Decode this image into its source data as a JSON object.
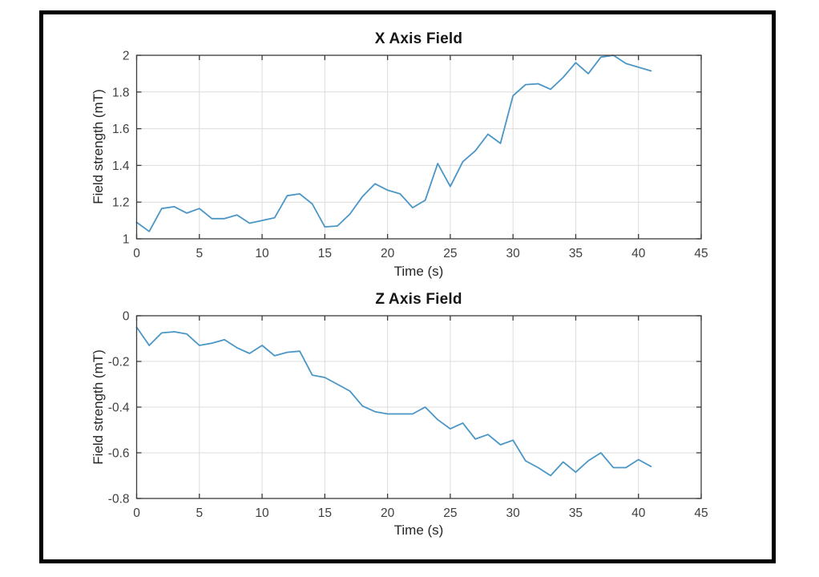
{
  "figure": {
    "background": "#ffffff",
    "frame_color": "#000000"
  },
  "chart_data": [
    {
      "type": "line",
      "title": "X Axis Field",
      "xlabel": "Time (s)",
      "ylabel": "Field strength (mT)",
      "xlim": [
        0,
        45
      ],
      "ylim": [
        1,
        2
      ],
      "xticks": [
        0,
        5,
        10,
        15,
        20,
        25,
        30,
        35,
        40,
        45
      ],
      "xtick_labels": [
        "0",
        "5",
        "10",
        "15",
        "20",
        "25",
        "30",
        "35",
        "40",
        "45"
      ],
      "yticks": [
        1,
        1.2,
        1.4,
        1.6,
        1.8,
        2
      ],
      "ytick_labels": [
        "1",
        "1.2",
        "1.4",
        "1.6",
        "1.8",
        "2"
      ],
      "grid": true,
      "legend": null,
      "line_color": "#4a96c6",
      "x": [
        0,
        1,
        2,
        3,
        4,
        5,
        6,
        7,
        8,
        9,
        10,
        11,
        12,
        13,
        14,
        15,
        16,
        17,
        18,
        19,
        20,
        21,
        22,
        23,
        24,
        25,
        26,
        27,
        28,
        29,
        30,
        31,
        32,
        33,
        34,
        35,
        36,
        37,
        38,
        39,
        40,
        41
      ],
      "y": [
        1.09,
        1.04,
        1.165,
        1.175,
        1.14,
        1.165,
        1.11,
        1.11,
        1.13,
        1.085,
        1.1,
        1.115,
        1.235,
        1.245,
        1.19,
        1.065,
        1.07,
        1.135,
        1.23,
        1.3,
        1.265,
        1.245,
        1.17,
        1.21,
        1.41,
        1.285,
        1.42,
        1.48,
        1.57,
        1.52,
        1.78,
        1.84,
        1.845,
        1.815,
        1.88,
        1.96,
        1.9,
        1.99,
        2.0,
        1.955,
        1.935,
        1.915
      ]
    },
    {
      "type": "line",
      "title": "Z Axis Field",
      "xlabel": "Time (s)",
      "ylabel": "Field strength (mT)",
      "xlim": [
        0,
        45
      ],
      "ylim": [
        -0.8,
        0
      ],
      "xticks": [
        0,
        5,
        10,
        15,
        20,
        25,
        30,
        35,
        40,
        45
      ],
      "xtick_labels": [
        "0",
        "5",
        "10",
        "15",
        "20",
        "25",
        "30",
        "35",
        "40",
        "45"
      ],
      "yticks": [
        0,
        -0.2,
        -0.4,
        -0.6,
        -0.8
      ],
      "ytick_labels": [
        "0",
        "-0.2",
        "-0.4",
        "-0.6",
        "-0.8"
      ],
      "grid": true,
      "legend": null,
      "line_color": "#4a96c6",
      "x": [
        0,
        1,
        2,
        3,
        4,
        5,
        6,
        7,
        8,
        9,
        10,
        11,
        12,
        13,
        14,
        15,
        16,
        17,
        18,
        19,
        20,
        21,
        22,
        23,
        24,
        25,
        26,
        27,
        28,
        29,
        30,
        31,
        32,
        33,
        34,
        35,
        36,
        37,
        38,
        39,
        40,
        41
      ],
      "y": [
        -0.05,
        -0.13,
        -0.075,
        -0.07,
        -0.08,
        -0.13,
        -0.12,
        -0.105,
        -0.14,
        -0.165,
        -0.13,
        -0.175,
        -0.16,
        -0.155,
        -0.26,
        -0.27,
        -0.3,
        -0.33,
        -0.395,
        -0.42,
        -0.43,
        -0.43,
        -0.43,
        -0.4,
        -0.455,
        -0.495,
        -0.47,
        -0.54,
        -0.52,
        -0.565,
        -0.545,
        -0.635,
        -0.665,
        -0.7,
        -0.64,
        -0.685,
        -0.635,
        -0.6,
        -0.665,
        -0.665,
        -0.63,
        -0.66
      ]
    }
  ],
  "style": {
    "grid_color": "#dcdcdc",
    "spine_color": "#3a3a3a",
    "tick_label_color": "#3f3f3f"
  }
}
